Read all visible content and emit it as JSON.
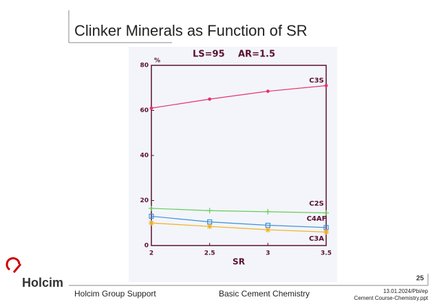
{
  "slide": {
    "title": "Clinker Minerals as Function of SR",
    "logo": "Holcim",
    "page_number": "25",
    "footer_left": "Holcim Group Support",
    "footer_center": "Basic Cement Chemistry",
    "footer_right_1": "13.01.2024/Pbi/ep",
    "footer_right_2": "Cement Course-Chemistry.ppt"
  },
  "chart_data": {
    "type": "line",
    "annotations": [
      "LS=95",
      "AR=1.5"
    ],
    "x_label": "SR",
    "y_label": "%",
    "x": [
      2,
      2.5,
      3,
      3.5
    ],
    "xlim": [
      2,
      3.5
    ],
    "xticks": [
      2,
      2.5,
      3,
      3.5
    ],
    "ylim": [
      0,
      80
    ],
    "yticks": [
      0,
      20,
      40,
      60,
      80
    ],
    "series": [
      {
        "name": "C3S",
        "color": "#e8306a",
        "marker": "dot",
        "values": [
          61,
          65,
          68.5,
          71
        ]
      },
      {
        "name": "C2S",
        "color": "#66cc55",
        "marker": "plus",
        "values": [
          16.5,
          15.5,
          15,
          14.5
        ]
      },
      {
        "name": "C4AF",
        "color": "#3a8fd8",
        "marker": "square",
        "values": [
          13,
          10.5,
          9,
          8
        ]
      },
      {
        "name": "C3A",
        "color": "#f0b020",
        "marker": "star",
        "values": [
          10,
          8.5,
          7,
          6
        ]
      }
    ]
  }
}
